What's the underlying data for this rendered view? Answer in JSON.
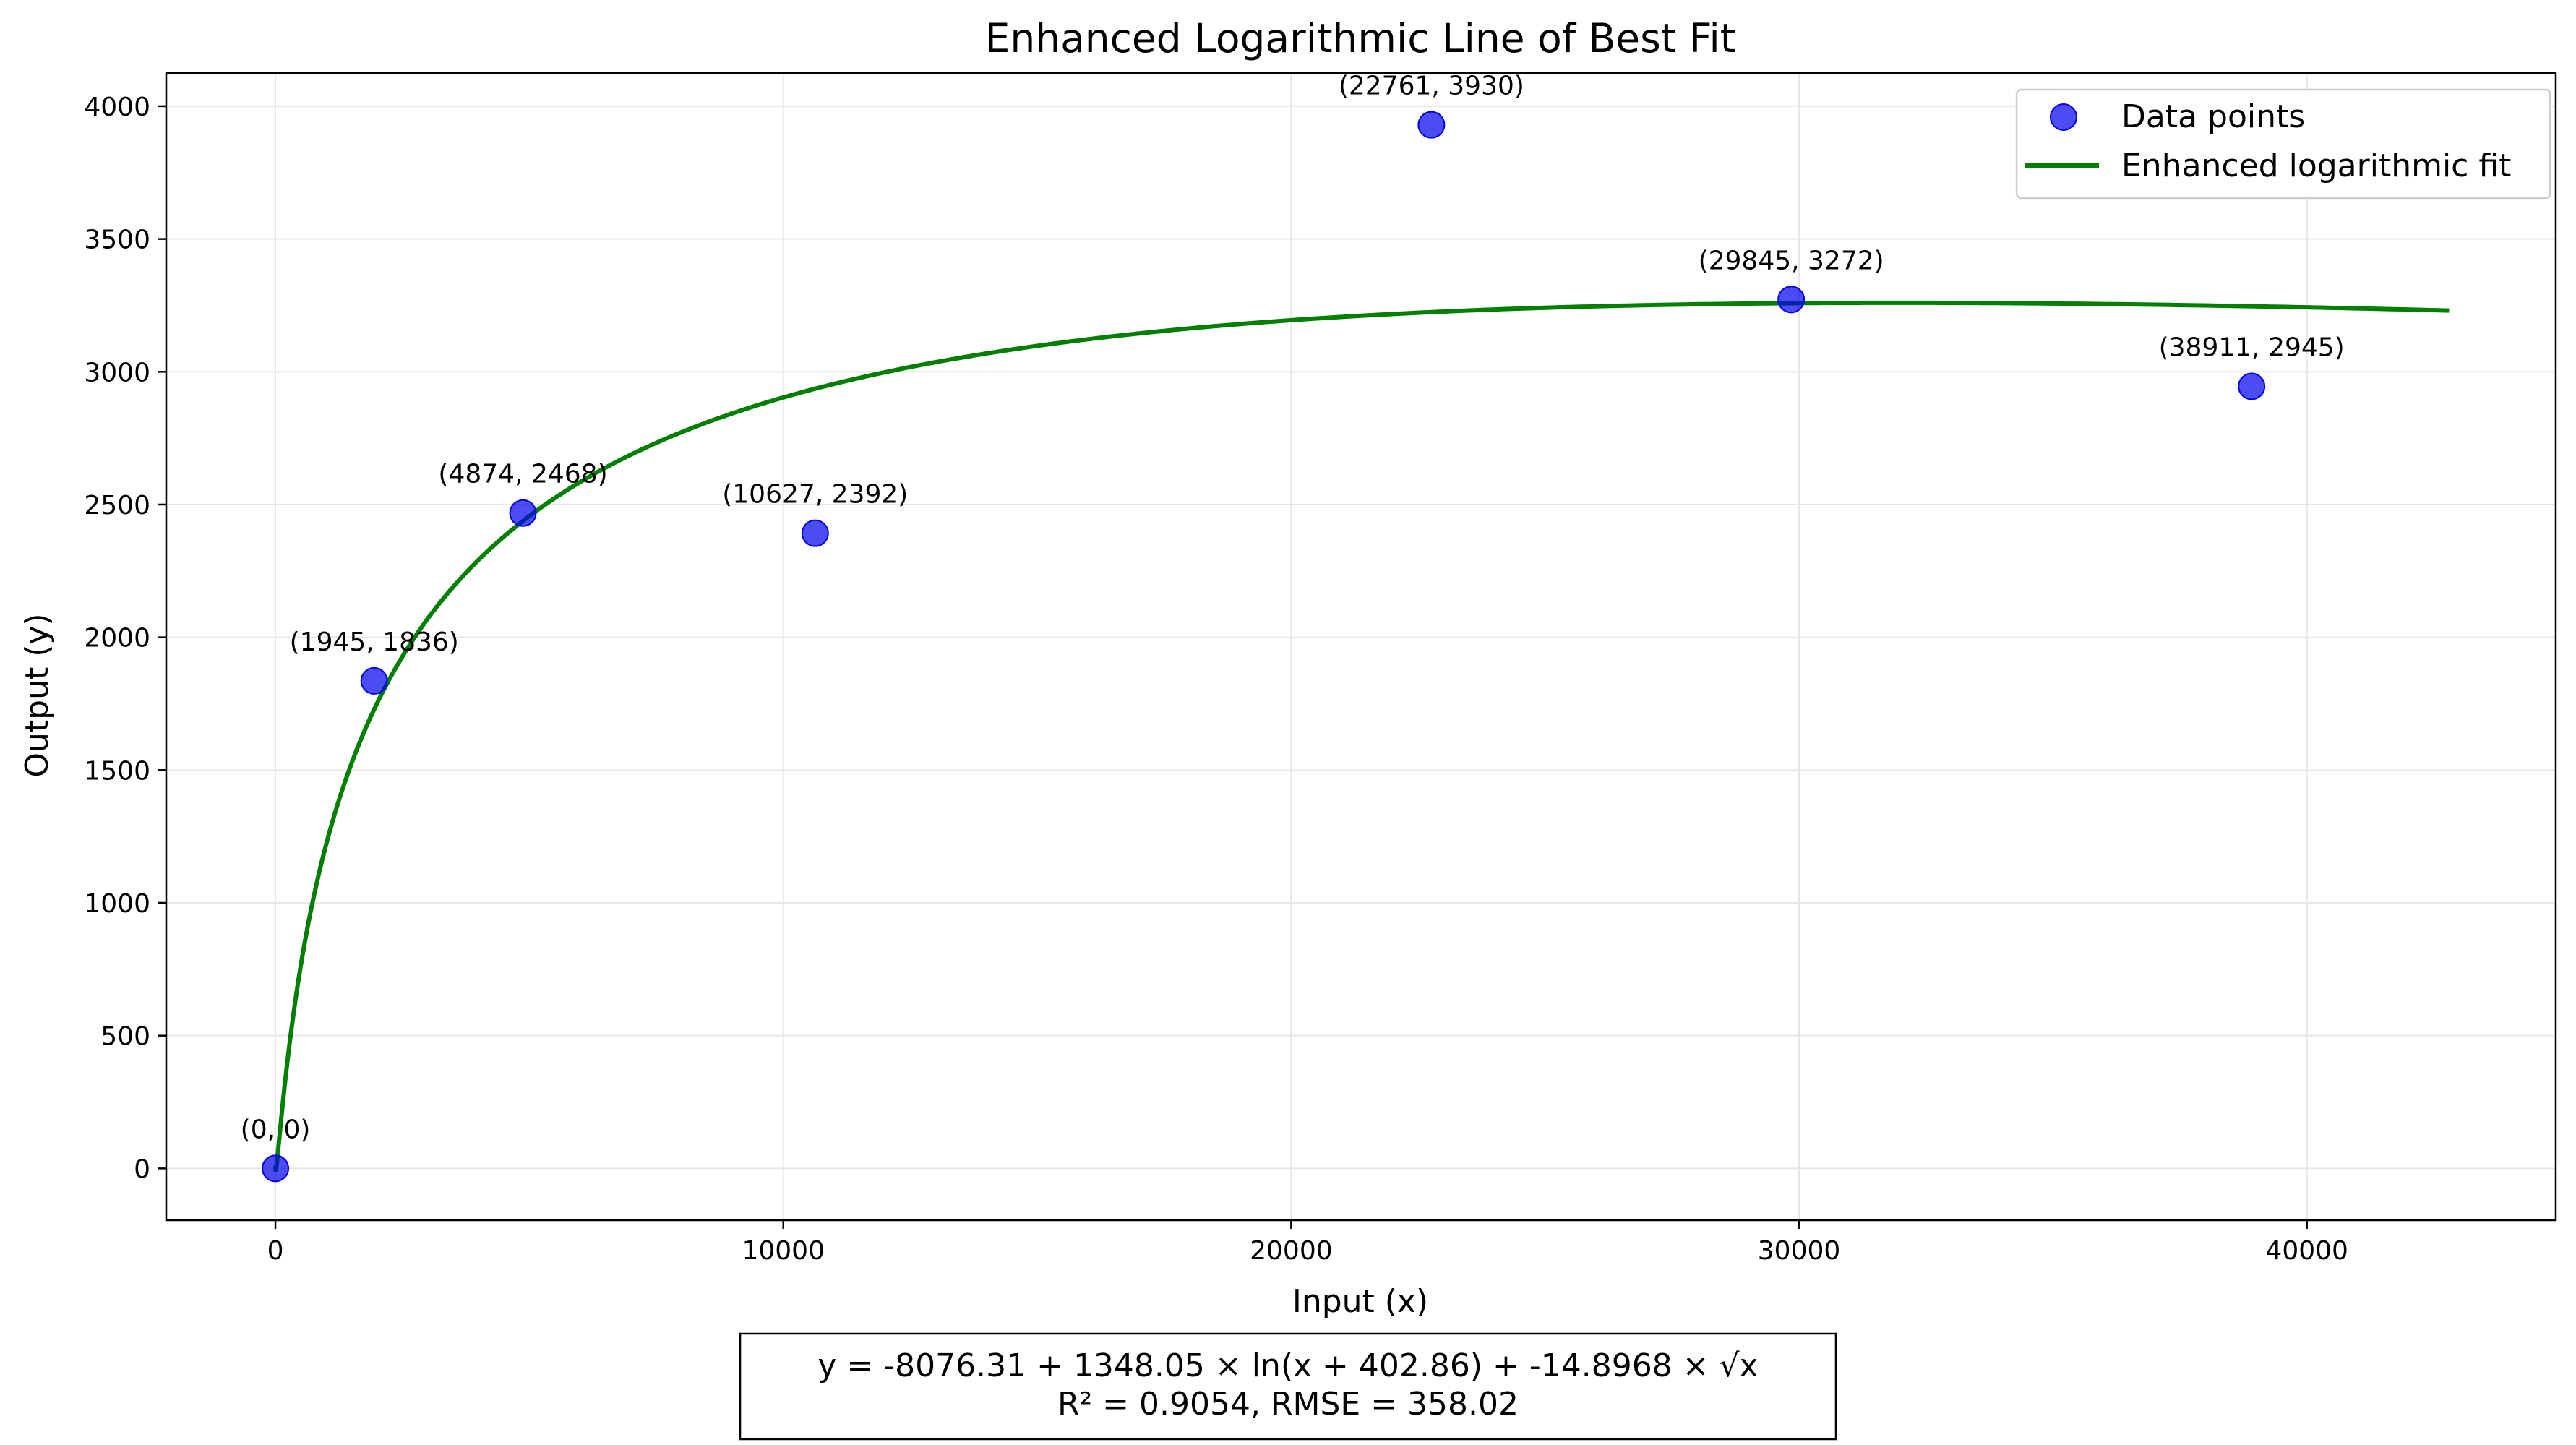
{
  "chart_data": {
    "type": "scatter",
    "title": "Enhanced Logarithmic Line of Best Fit",
    "xlabel": "Input (x)",
    "ylabel": "Output (y)",
    "xlim": [
      -2150,
      44900
    ],
    "ylim": [
      -195,
      4125
    ],
    "xticks": [
      0,
      10000,
      20000,
      30000,
      40000
    ],
    "yticks": [
      0,
      500,
      1000,
      1500,
      2000,
      2500,
      3000,
      3500,
      4000
    ],
    "grid": true,
    "legend_position": "top-right",
    "series": [
      {
        "name": "Data points",
        "kind": "scatter",
        "color": "#0000ee",
        "points": [
          {
            "x": 0,
            "y": 0,
            "label": "(0, 0)"
          },
          {
            "x": 1945,
            "y": 1836,
            "label": "(1945, 1836)"
          },
          {
            "x": 4874,
            "y": 2468,
            "label": "(4874, 2468)"
          },
          {
            "x": 10627,
            "y": 2392,
            "label": "(10627, 2392)"
          },
          {
            "x": 22761,
            "y": 3930,
            "label": "(22761, 3930)"
          },
          {
            "x": 29845,
            "y": 3272,
            "label": "(29845, 3272)"
          },
          {
            "x": 38911,
            "y": 2945,
            "label": "(38911, 2945)"
          }
        ]
      },
      {
        "name": "Enhanced logarithmic fit",
        "kind": "line",
        "color": "#007f00",
        "fit": {
          "a": -8076.31,
          "b": 1348.05,
          "c": 402.86,
          "d": -14.8968
        },
        "x_range": [
          0,
          42800
        ]
      }
    ],
    "equation_box": {
      "line1": "y = -8076.31 + 1348.05 × ln(x + 402.86) + -14.8968 × √x",
      "line2": "R² = 0.9054, RMSE = 358.02"
    }
  }
}
